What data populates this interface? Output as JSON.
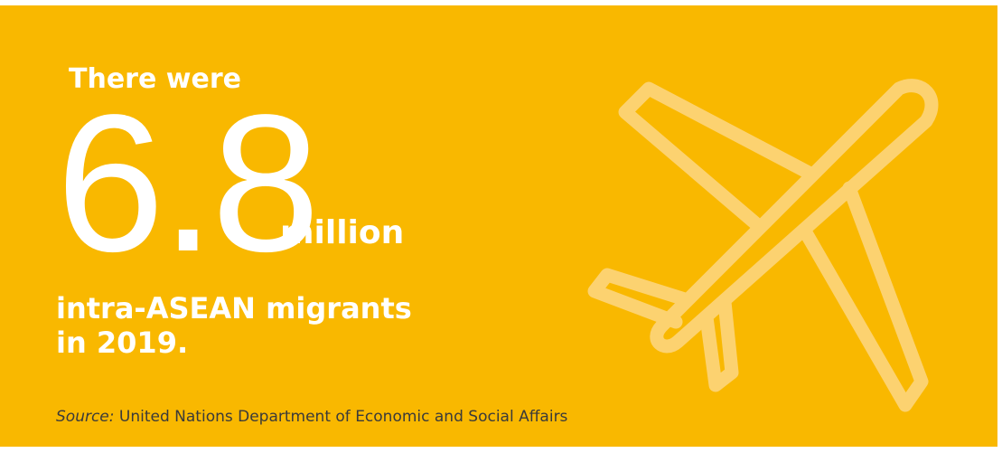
{
  "stat": {
    "lead": "There were",
    "number": "6.8",
    "unit": "million",
    "description": "intra-ASEAN migrants in 2019."
  },
  "source": {
    "label": "Source:",
    "text": "United Nations Department of Economic and Social Affairs"
  },
  "decor": {
    "icon": "airplane-icon"
  },
  "colors": {
    "background": "#F9B800",
    "text": "#FFFFFF",
    "icon_stroke": "#FCD270",
    "source_text": "#3A3A3A"
  }
}
